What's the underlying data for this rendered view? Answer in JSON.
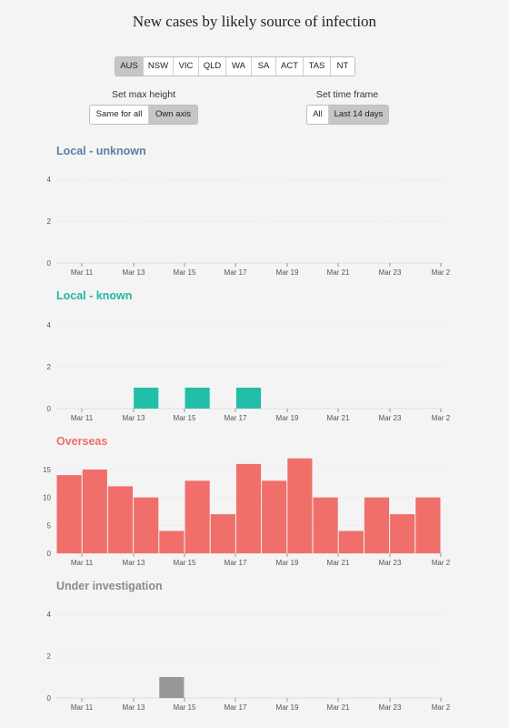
{
  "title": "New cases by likely source of infection",
  "regions": {
    "items": [
      "AUS",
      "NSW",
      "VIC",
      "QLD",
      "WA",
      "SA",
      "ACT",
      "TAS",
      "NT"
    ],
    "selected": "AUS"
  },
  "max_height": {
    "label": "Set max height",
    "options": [
      "Same for all",
      "Own axis"
    ],
    "selected": "Own axis"
  },
  "time_frame": {
    "label": "Set time frame",
    "options": [
      "All",
      "Last 14 days"
    ],
    "selected": "Last 14 days"
  },
  "chart_data": [
    {
      "type": "bar",
      "title": "Local - unknown",
      "color": "#5b7fa6",
      "bar_color": "#5b7fa6",
      "x": [
        "Mar 10",
        "Mar 11",
        "Mar 12",
        "Mar 13",
        "Mar 14",
        "Mar 15",
        "Mar 16",
        "Mar 17",
        "Mar 18",
        "Mar 19",
        "Mar 20",
        "Mar 21",
        "Mar 22",
        "Mar 23",
        "Mar 24"
      ],
      "values": [
        0,
        0,
        0,
        0,
        0,
        0,
        0,
        0,
        0,
        0,
        0,
        0,
        0,
        0,
        0
      ],
      "yticks": [
        0,
        2,
        4
      ],
      "ylim": [
        0,
        4
      ],
      "xticks": [
        "Mar 11",
        "Mar 13",
        "Mar 15",
        "Mar 17",
        "Mar 19",
        "Mar 21",
        "Mar 23",
        "Mar 2"
      ]
    },
    {
      "type": "bar",
      "title": "Local - known",
      "color": "#22b7a3",
      "bar_color": "#22bfa8",
      "x": [
        "Mar 10",
        "Mar 11",
        "Mar 12",
        "Mar 13",
        "Mar 14",
        "Mar 15",
        "Mar 16",
        "Mar 17",
        "Mar 18",
        "Mar 19",
        "Mar 20",
        "Mar 21",
        "Mar 22",
        "Mar 23",
        "Mar 24"
      ],
      "values": [
        0,
        0,
        0,
        1,
        0,
        1,
        0,
        1,
        0,
        0,
        0,
        0,
        0,
        0,
        0
      ],
      "yticks": [
        0,
        2,
        4
      ],
      "ylim": [
        0,
        4
      ],
      "xticks": [
        "Mar 11",
        "Mar 13",
        "Mar 15",
        "Mar 17",
        "Mar 19",
        "Mar 21",
        "Mar 23",
        "Mar 2"
      ]
    },
    {
      "type": "bar",
      "title": "Overseas",
      "color": "#ef6c69",
      "bar_color": "#f06f6b",
      "x": [
        "Mar 10",
        "Mar 11",
        "Mar 12",
        "Mar 13",
        "Mar 14",
        "Mar 15",
        "Mar 16",
        "Mar 17",
        "Mar 18",
        "Mar 19",
        "Mar 20",
        "Mar 21",
        "Mar 22",
        "Mar 23",
        "Mar 24"
      ],
      "values": [
        14,
        15,
        12,
        10,
        4,
        13,
        7,
        16,
        13,
        17,
        10,
        4,
        10,
        7,
        10
      ],
      "yticks": [
        0,
        5,
        10,
        15
      ],
      "ylim": [
        0,
        17
      ],
      "xticks": [
        "Mar 11",
        "Mar 13",
        "Mar 15",
        "Mar 17",
        "Mar 19",
        "Mar 21",
        "Mar 23",
        "Mar 2"
      ]
    },
    {
      "type": "bar",
      "title": "Under investigation",
      "color": "#8a8a8a",
      "bar_color": "#979797",
      "x": [
        "Mar 10",
        "Mar 11",
        "Mar 12",
        "Mar 13",
        "Mar 14",
        "Mar 15",
        "Mar 16",
        "Mar 17",
        "Mar 18",
        "Mar 19",
        "Mar 20",
        "Mar 21",
        "Mar 22",
        "Mar 23",
        "Mar 24"
      ],
      "values": [
        0,
        0,
        0,
        0,
        1,
        0,
        0,
        0,
        0,
        0,
        0,
        0,
        0,
        0,
        0
      ],
      "yticks": [
        0,
        2,
        4
      ],
      "ylim": [
        0,
        4
      ],
      "xticks": [
        "Mar 11",
        "Mar 13",
        "Mar 15",
        "Mar 17",
        "Mar 19",
        "Mar 21",
        "Mar 23",
        "Mar 2"
      ]
    }
  ]
}
